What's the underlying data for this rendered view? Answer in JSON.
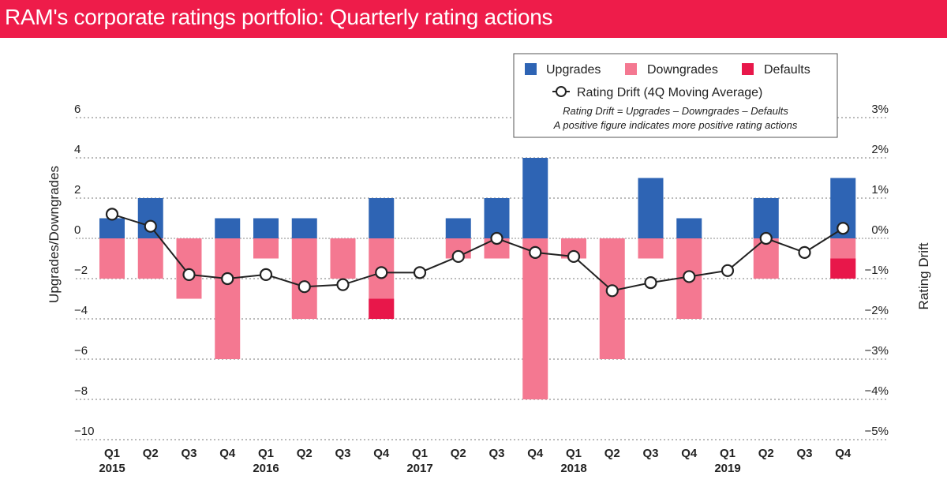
{
  "header": {
    "title": "RAM's corporate ratings portfolio: Quarterly rating actions"
  },
  "colors": {
    "title_bar": "#ee1c4a",
    "upgrades": "#2e64b4",
    "downgrades": "#f47891",
    "defaults": "#e8174a",
    "drift_line": "#222222"
  },
  "chart_data": {
    "type": "bar",
    "categories": [
      "Q1",
      "Q2",
      "Q3",
      "Q4",
      "Q1",
      "Q2",
      "Q3",
      "Q4",
      "Q1",
      "Q2",
      "Q3",
      "Q4",
      "Q1",
      "Q2",
      "Q3",
      "Q4",
      "Q1",
      "Q2",
      "Q3",
      "Q4"
    ],
    "year_labels": [
      "2015",
      "",
      "",
      "",
      "2016",
      "",
      "",
      "",
      "2017",
      "",
      "",
      "",
      "2018",
      "",
      "",
      "",
      "2019",
      "",
      "",
      ""
    ],
    "series": [
      {
        "name": "Upgrades",
        "values": [
          1,
          2,
          0,
          1,
          1,
          1,
          0,
          2,
          0,
          1,
          2,
          4,
          0,
          0,
          3,
          1,
          0,
          2,
          0,
          3
        ]
      },
      {
        "name": "Downgrades",
        "values": [
          -2,
          -2,
          -3,
          -6,
          -1,
          -4,
          -2,
          -3,
          0,
          -1,
          -1,
          -8,
          -1,
          -6,
          -1,
          -4,
          0,
          -2,
          0,
          -1
        ]
      },
      {
        "name": "Defaults",
        "values": [
          0,
          0,
          0,
          0,
          0,
          0,
          0,
          -1,
          0,
          0,
          0,
          0,
          0,
          0,
          0,
          0,
          0,
          0,
          0,
          -1
        ]
      },
      {
        "name": "Rating Drift (4Q Moving Average)",
        "axis": "right",
        "values": [
          0.6,
          0.3,
          -0.9,
          -1.0,
          -0.9,
          -1.2,
          -1.15,
          -0.85,
          -0.85,
          -0.45,
          0.0,
          -0.35,
          -0.45,
          -1.3,
          -1.1,
          -0.95,
          -0.8,
          0.0,
          -0.35,
          0.25
        ]
      }
    ],
    "ylabel_left": "Upgrades/Downgrades",
    "ylabel_right": "Rating Drift",
    "ylim_left": [
      -10,
      6
    ],
    "ylim_right": [
      -5,
      3
    ],
    "y_ticks_left": [
      "6",
      "4",
      "2",
      "0",
      "−2",
      "−4",
      "−6",
      "−8",
      "−10"
    ],
    "y_ticks_right": [
      "3%",
      "2%",
      "1%",
      "0%",
      "−1%",
      "−2%",
      "−3%",
      "−4%",
      "−5%"
    ],
    "grid": "horizontal dotted",
    "legend_position": "top-right",
    "legend": [
      "Upgrades",
      "Downgrades",
      "Defaults",
      "Rating Drift (4Q Moving Average)"
    ],
    "notes": [
      "Rating Drift = Upgrades – Downgrades – Defaults",
      "A positive figure indicates more positive rating actions"
    ]
  }
}
